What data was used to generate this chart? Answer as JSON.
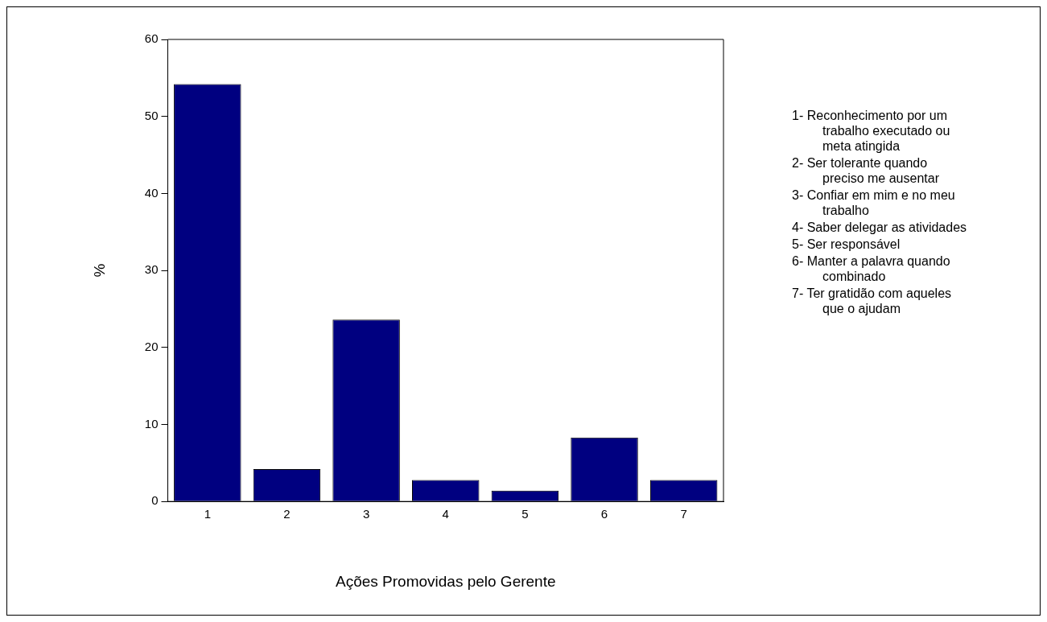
{
  "chart_data": {
    "type": "bar",
    "xlabel": "Ações Promovidas pelo Gerente",
    "ylabel": "%",
    "categories": [
      "1",
      "2",
      "3",
      "4",
      "5",
      "6",
      "7"
    ],
    "values": [
      54.2,
      4.2,
      23.6,
      2.8,
      1.4,
      8.3,
      2.8
    ],
    "color": "#000080",
    "ylim": [
      0,
      60
    ],
    "yticks": [
      0,
      10,
      20,
      30,
      40,
      50,
      60
    ],
    "grid": false,
    "legend": false,
    "annotations": [
      "1- Reconhecimento por um trabalho executado ou meta atingida",
      "2- Ser tolerante quando preciso me ausentar",
      "3- Confiar em mim e no meu trabalho",
      "4- Saber delegar as atividades",
      "5- Ser responsável",
      "6- Manter a palavra quando combinado",
      "7- Ter gratidão com aqueles que o ajudam"
    ]
  }
}
